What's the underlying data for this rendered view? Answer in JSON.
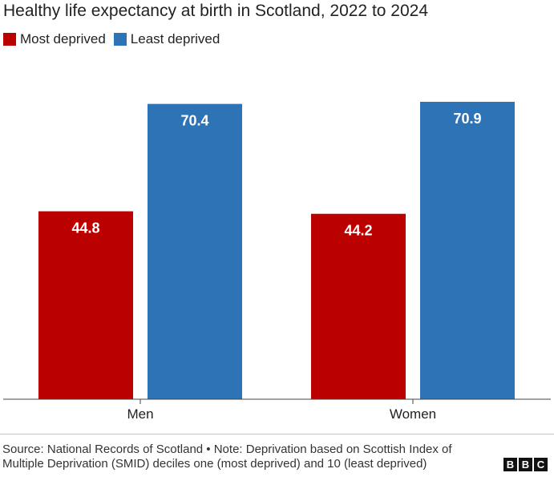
{
  "chart_data": {
    "type": "bar",
    "title": "Healthy life expectancy at birth in Scotland, 2022 to 2024",
    "categories": [
      "Men",
      "Women"
    ],
    "series": [
      {
        "name": "Most deprived",
        "color": "#bb0000",
        "values": [
          44.8,
          44.2
        ],
        "labels": [
          "44.8",
          "44.2"
        ]
      },
      {
        "name": "Least deprived",
        "color": "#2e73b6",
        "values": [
          70.4,
          70.9
        ],
        "labels": [
          "70.4",
          "70.9"
        ]
      }
    ],
    "xlabel": "",
    "ylabel": "",
    "ylim": [
      0,
      70.9
    ],
    "grid": false,
    "legend": "top-left"
  },
  "footer": {
    "source": "Source: National Records of Scotland • Note: Deprivation based on Scottish Index of Multiple Deprivation (SMID) deciles one (most deprived) and 10 (least deprived)",
    "logo": [
      "B",
      "B",
      "C"
    ]
  }
}
